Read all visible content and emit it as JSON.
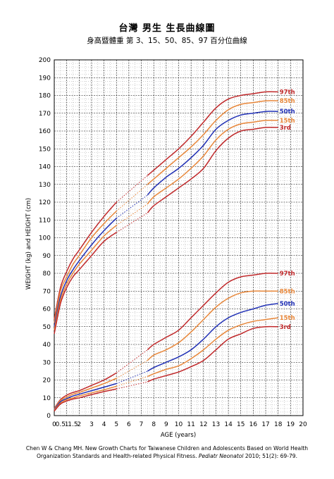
{
  "header": {
    "title": "台灣 男生 生長曲線圖",
    "subtitle": "身高暨體重 第 3、15、50、85、97 百分位曲線"
  },
  "caption": {
    "line1": "Chen W & Chang MH. New Growth Charts for Taiwanese Children and Adolescents Based on World Health",
    "line2_prefix": "Organization Standards and Health-related Physical Fitness.",
    "journal": "Pediatr Neonatol",
    "line2_suffix": "2010; 51(2): 69-79."
  },
  "chart_data": {
    "type": "line",
    "title": "台灣 男生 生長曲線圖",
    "subtitle": "身高暨體重 第 3、15、50、85、97 百分位曲線",
    "xlabel": "AGE (years)",
    "ylabel": "WEIGHT (kg) and HEIGHT (cm)",
    "xlim": [
      0,
      20
    ],
    "ylim": [
      0,
      200
    ],
    "x_ticks": [
      "0",
      "0.5",
      "1",
      "1.5",
      "2",
      "3",
      "4",
      "5",
      "6",
      "7",
      "8",
      "9",
      "10",
      "11",
      "12",
      "13",
      "14",
      "15",
      "16",
      "17",
      "18",
      "19",
      "20"
    ],
    "y_ticks": [
      "0",
      "10",
      "20",
      "30",
      "40",
      "50",
      "60",
      "70",
      "80",
      "90",
      "100",
      "110",
      "120",
      "130",
      "140",
      "150",
      "160",
      "170",
      "180",
      "190",
      "200"
    ],
    "grid": true,
    "dashed_interval_years": [
      5,
      7.5
    ],
    "colors": {
      "p97": "#c0282a",
      "p85": "#e8873a",
      "p50": "#1f2fb5",
      "p15": "#e8873a",
      "p3": "#c0282a"
    },
    "height_series": [
      {
        "name": "97th",
        "x": [
          0,
          0.5,
          1,
          1.5,
          2,
          3,
          4,
          5,
          7.5,
          8,
          9,
          10,
          11,
          12,
          13,
          14,
          15,
          16,
          17,
          18
        ],
        "values": [
          54,
          72,
          81,
          88,
          93,
          103,
          112,
          120,
          135,
          138,
          144,
          150,
          157,
          165,
          173,
          178,
          180,
          181,
          182,
          182
        ]
      },
      {
        "name": "85th",
        "x": [
          0,
          0.5,
          1,
          1.5,
          2,
          3,
          4,
          5,
          7.5,
          8,
          9,
          10,
          11,
          12,
          13,
          14,
          15,
          16,
          17,
          18
        ],
        "values": [
          52,
          70,
          78,
          85,
          90,
          100,
          108,
          115,
          130,
          133,
          139,
          145,
          151,
          158,
          166,
          172,
          175,
          176,
          177,
          177
        ]
      },
      {
        "name": "50th",
        "x": [
          0,
          0.5,
          1,
          1.5,
          2,
          3,
          4,
          5,
          7.5,
          8,
          9,
          10,
          11,
          12,
          13,
          14,
          15,
          16,
          17,
          18
        ],
        "values": [
          50,
          67,
          76,
          82,
          87,
          96,
          104,
          111,
          124,
          128,
          134,
          139,
          145,
          152,
          161,
          166,
          169,
          170,
          171,
          171
        ]
      },
      {
        "name": "15th",
        "x": [
          0,
          0.5,
          1,
          1.5,
          2,
          3,
          4,
          5,
          7.5,
          8,
          9,
          10,
          11,
          12,
          13,
          14,
          15,
          16,
          17,
          18
        ],
        "values": [
          48,
          65,
          74,
          80,
          85,
          93,
          101,
          107,
          119,
          123,
          128,
          133,
          139,
          146,
          155,
          161,
          164,
          165,
          166,
          166
        ]
      },
      {
        "name": "3rd",
        "x": [
          0,
          0.5,
          1,
          1.5,
          2,
          3,
          4,
          5,
          7.5,
          8,
          9,
          10,
          11,
          12,
          13,
          14,
          15,
          16,
          17,
          18
        ],
        "values": [
          46,
          63,
          72,
          78,
          82,
          90,
          98,
          103,
          114,
          118,
          123,
          128,
          133,
          139,
          149,
          156,
          160,
          161,
          162,
          162
        ]
      }
    ],
    "weight_series": [
      {
        "name": "97th",
        "x": [
          0,
          0.5,
          1,
          1.5,
          2,
          3,
          4,
          5,
          7.5,
          8,
          9,
          10,
          11,
          12,
          13,
          14,
          15,
          16,
          17,
          18
        ],
        "values": [
          4,
          9,
          11.5,
          13,
          14,
          17,
          20,
          24,
          37,
          40,
          44,
          48,
          55,
          62,
          69,
          75,
          78,
          79,
          80,
          80
        ]
      },
      {
        "name": "85th",
        "x": [
          0,
          0.5,
          1,
          1.5,
          2,
          3,
          4,
          5,
          7.5,
          8,
          9,
          10,
          11,
          12,
          13,
          14,
          15,
          16,
          17,
          18
        ],
        "values": [
          3.8,
          8.5,
          10.5,
          12,
          13,
          15.5,
          18,
          21,
          31,
          34,
          37,
          41,
          47,
          54,
          61,
          66,
          69,
          70,
          70,
          70
        ]
      },
      {
        "name": "50th",
        "x": [
          0,
          0.5,
          1,
          1.5,
          2,
          3,
          4,
          5,
          7.5,
          8,
          9,
          10,
          11,
          12,
          13,
          14,
          15,
          16,
          17,
          18
        ],
        "values": [
          3.3,
          7.8,
          9.6,
          11,
          12,
          14,
          16,
          18,
          25,
          27,
          30,
          33,
          37,
          43,
          50,
          55,
          58,
          60,
          62,
          63
        ]
      },
      {
        "name": "15th",
        "x": [
          0,
          0.5,
          1,
          1.5,
          2,
          3,
          4,
          5,
          7.5,
          8,
          9,
          10,
          11,
          12,
          13,
          14,
          15,
          16,
          17,
          18
        ],
        "values": [
          3,
          7,
          9,
          10,
          11,
          12.8,
          14.5,
          16.5,
          22,
          23.5,
          26,
          28,
          32,
          37,
          43,
          48,
          51,
          53,
          54,
          55
        ]
      },
      {
        "name": "3rd",
        "x": [
          0,
          0.5,
          1,
          1.5,
          2,
          3,
          4,
          5,
          7.5,
          8,
          9,
          10,
          11,
          12,
          13,
          14,
          15,
          16,
          17,
          18
        ],
        "values": [
          2.5,
          6.5,
          8.2,
          9.3,
          10,
          11.8,
          13.5,
          15,
          19,
          20.5,
          22.5,
          24.5,
          27.5,
          31,
          37,
          43,
          46,
          49,
          50,
          50
        ]
      }
    ]
  }
}
